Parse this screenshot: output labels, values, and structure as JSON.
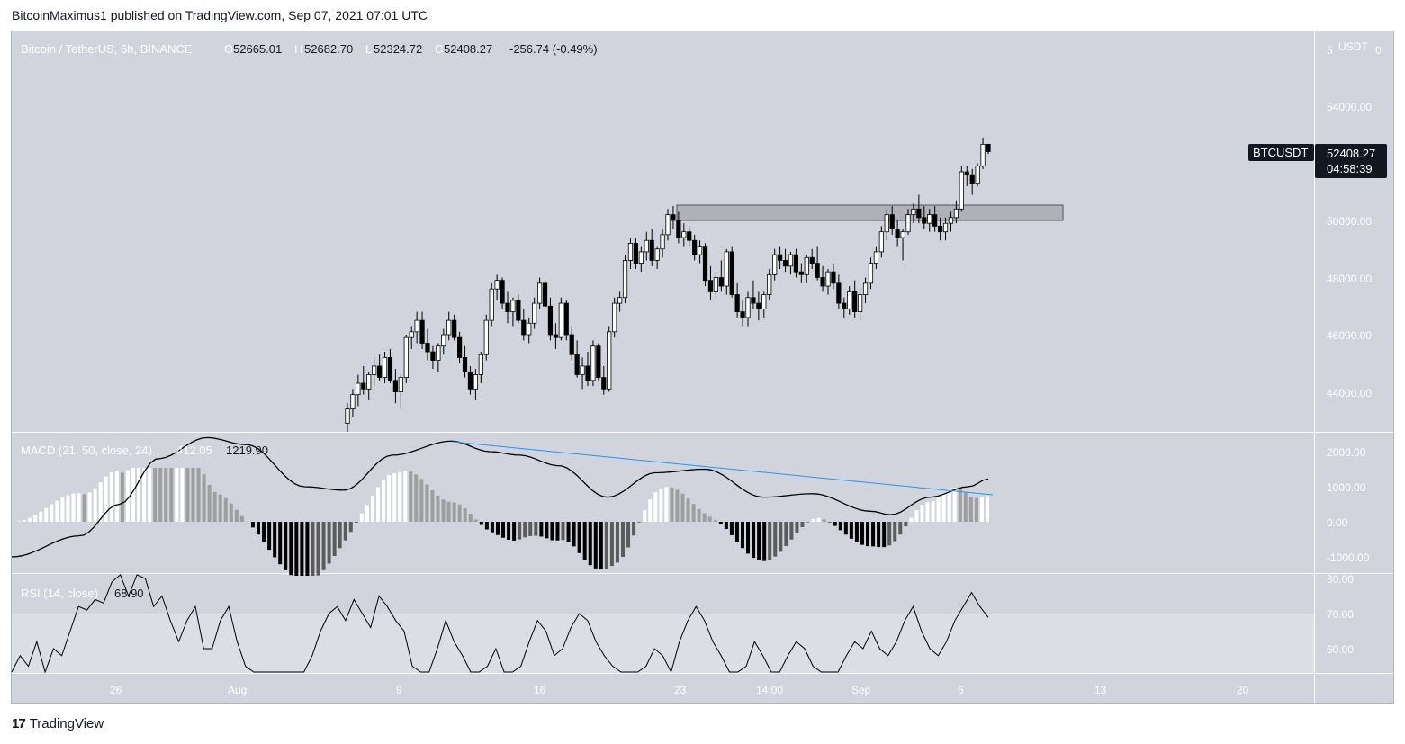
{
  "header": {
    "publisher_line": "BitcoinMaximus1 published on TradingView.com, Sep 07, 2021 07:01 UTC"
  },
  "footer": {
    "logo_mark": "17",
    "logo_text": "TradingView"
  },
  "colors": {
    "pane_bg": "#d1d4dc",
    "axis_bg": "#d1d4dc",
    "candle_up": "#ffffff",
    "candle_down": "#000000",
    "wick": "#000000",
    "trendline": "#2196f3",
    "resistance_zone": "#9c9c9c",
    "label_bg": "#131722"
  },
  "legend": {
    "symbol": "Bitcoin / TetherUS, 6h, BINANCE",
    "open_prefix": "O",
    "open": "52665.01",
    "high_prefix": "H",
    "high": "52682.70",
    "low_prefix": "L",
    "low": "52324.72",
    "close_prefix": "C",
    "close": "52408.27",
    "change": "-256.74 (-0.49%)"
  },
  "price_axis": {
    "currency": "USDT",
    "ticks": [
      "54000.00",
      "50000.00",
      "48000.00",
      "46000.00",
      "44000.00"
    ],
    "cut_top_left": "5",
    "cut_top_right": "0"
  },
  "last_price_label": {
    "symbol": "BTCUSDT",
    "price": "52408.27",
    "countdown": "04:58:39"
  },
  "macd": {
    "label": "MACD (21, 50, close, 24)",
    "value1": "412.05",
    "value2": "1219.90",
    "ticks": [
      "2000.00",
      "1000.00",
      "0.00",
      "-1000.00"
    ]
  },
  "rsi": {
    "label": "RSI (14, close)",
    "value": "68.90",
    "ticks": [
      "80.00",
      "70.00",
      "60.00"
    ]
  },
  "time_axis": {
    "labels": [
      "26",
      "Aug",
      "9",
      "16",
      "23",
      "14:00",
      "Sep",
      "6",
      "13",
      "20"
    ]
  },
  "chart_data": {
    "type": "candlestick",
    "title": "Bitcoin / TetherUS, 6h, BINANCE",
    "price_ylim": [
      43000,
      55000
    ],
    "resistance_zone": [
      50000,
      50550
    ],
    "ohlc_approx": [
      [
        42900,
        43600,
        42600,
        43400
      ],
      [
        43400,
        44100,
        43100,
        43900
      ],
      [
        43900,
        44600,
        43500,
        44300
      ],
      [
        44300,
        44900,
        43900,
        44100
      ],
      [
        44100,
        44700,
        43700,
        44600
      ],
      [
        44600,
        45200,
        44200,
        44900
      ],
      [
        44900,
        45300,
        44400,
        44500
      ],
      [
        44500,
        45400,
        44300,
        45200
      ],
      [
        45200,
        45500,
        44300,
        44400
      ],
      [
        44400,
        44800,
        43600,
        44000
      ],
      [
        44000,
        44600,
        43400,
        44500
      ],
      [
        44500,
        46000,
        44300,
        45900
      ],
      [
        45900,
        46300,
        45500,
        46100
      ],
      [
        46100,
        46800,
        45700,
        46500
      ],
      [
        46500,
        46800,
        45500,
        45700
      ],
      [
        45700,
        46200,
        45100,
        45400
      ],
      [
        45400,
        45600,
        44800,
        45100
      ],
      [
        45100,
        45700,
        44700,
        45600
      ],
      [
        45600,
        46200,
        45300,
        46000
      ],
      [
        46000,
        46800,
        45800,
        46500
      ],
      [
        46500,
        46700,
        45800,
        45900
      ],
      [
        45900,
        46100,
        45000,
        45200
      ],
      [
        45200,
        45600,
        44500,
        44700
      ],
      [
        44700,
        44900,
        43900,
        44100
      ],
      [
        44100,
        44800,
        43700,
        44600
      ],
      [
        44600,
        45400,
        44300,
        45300
      ],
      [
        45300,
        46700,
        45100,
        46500
      ],
      [
        46500,
        47800,
        46300,
        47600
      ],
      [
        47600,
        48100,
        47200,
        47900
      ],
      [
        47900,
        48000,
        46900,
        47100
      ],
      [
        47100,
        47500,
        46400,
        46800
      ],
      [
        46800,
        47300,
        46300,
        47200
      ],
      [
        47200,
        47400,
        46400,
        46500
      ],
      [
        46500,
        46900,
        45800,
        46000
      ],
      [
        46000,
        46600,
        45700,
        46400
      ],
      [
        46400,
        47300,
        46200,
        47100
      ],
      [
        47100,
        48000,
        46900,
        47800
      ],
      [
        47800,
        47900,
        46900,
        47000
      ],
      [
        47000,
        47300,
        45800,
        46000
      ],
      [
        46000,
        46400,
        45500,
        45900
      ],
      [
        45900,
        47300,
        45800,
        47100
      ],
      [
        47100,
        47200,
        45800,
        46000
      ],
      [
        46000,
        46300,
        45100,
        45300
      ],
      [
        45300,
        45800,
        44500,
        44600
      ],
      [
        44600,
        45200,
        44100,
        44900
      ],
      [
        44900,
        45400,
        44200,
        44400
      ],
      [
        44400,
        45800,
        44200,
        45600
      ],
      [
        45600,
        45700,
        44400,
        44500
      ],
      [
        44500,
        44900,
        43900,
        44100
      ],
      [
        44100,
        46300,
        44000,
        46100
      ],
      [
        46100,
        47300,
        45900,
        47100
      ],
      [
        47100,
        47500,
        46800,
        47300
      ],
      [
        47300,
        48800,
        47100,
        48600
      ],
      [
        48600,
        49400,
        48300,
        49200
      ],
      [
        49200,
        49400,
        48300,
        48500
      ],
      [
        48500,
        49100,
        48200,
        48900
      ],
      [
        48900,
        49600,
        48600,
        49300
      ],
      [
        49300,
        49700,
        48400,
        48600
      ],
      [
        48600,
        49100,
        48300,
        49000
      ],
      [
        49000,
        49700,
        48700,
        49500
      ],
      [
        49500,
        50400,
        49300,
        50200
      ],
      [
        50200,
        50500,
        49700,
        50000
      ],
      [
        50000,
        50300,
        49200,
        49400
      ],
      [
        49400,
        49900,
        49100,
        49600
      ],
      [
        49600,
        49800,
        49100,
        49300
      ],
      [
        49300,
        49500,
        48600,
        48800
      ],
      [
        48800,
        49300,
        48500,
        49100
      ],
      [
        49100,
        49200,
        47700,
        47900
      ],
      [
        47900,
        48400,
        47200,
        47500
      ],
      [
        47500,
        48200,
        47300,
        48000
      ],
      [
        48000,
        48600,
        47500,
        47700
      ],
      [
        47700,
        49000,
        47400,
        48900
      ],
      [
        48900,
        49100,
        47300,
        47400
      ],
      [
        47400,
        47800,
        46600,
        46800
      ],
      [
        46800,
        47200,
        46300,
        46600
      ],
      [
        46600,
        47500,
        46300,
        47300
      ],
      [
        47300,
        47900,
        46900,
        47100
      ],
      [
        47100,
        47500,
        46500,
        46900
      ],
      [
        46900,
        47500,
        46600,
        47400
      ],
      [
        47400,
        48300,
        47200,
        48100
      ],
      [
        48100,
        49000,
        47900,
        48800
      ],
      [
        48800,
        49100,
        48300,
        48600
      ],
      [
        48600,
        49000,
        48200,
        48400
      ],
      [
        48400,
        48900,
        48100,
        48800
      ],
      [
        48800,
        49000,
        48000,
        48200
      ],
      [
        48200,
        48500,
        47800,
        48100
      ],
      [
        48100,
        48800,
        47800,
        48700
      ],
      [
        48700,
        49000,
        48300,
        48500
      ],
      [
        48500,
        49100,
        47900,
        48000
      ],
      [
        48000,
        48400,
        47500,
        47700
      ],
      [
        47700,
        48300,
        47400,
        48200
      ],
      [
        48200,
        48500,
        47600,
        47800
      ],
      [
        47800,
        48100,
        46900,
        47100
      ],
      [
        47100,
        47300,
        46600,
        46900
      ],
      [
        46900,
        47700,
        46700,
        47500
      ],
      [
        47500,
        47900,
        46600,
        46800
      ],
      [
        46800,
        47600,
        46500,
        47400
      ],
      [
        47400,
        48000,
        47100,
        47800
      ],
      [
        47800,
        48700,
        47600,
        48500
      ],
      [
        48500,
        49100,
        48300,
        48900
      ],
      [
        48900,
        49800,
        48700,
        49600
      ],
      [
        49600,
        50400,
        49300,
        50200
      ],
      [
        50200,
        50500,
        49500,
        49700
      ],
      [
        49700,
        50000,
        49100,
        49400
      ],
      [
        49400,
        49700,
        48600,
        49600
      ],
      [
        49600,
        50400,
        49500,
        50200
      ],
      [
        50200,
        50600,
        49900,
        50400
      ],
      [
        50400,
        50900,
        49900,
        50100
      ],
      [
        50100,
        50500,
        49700,
        49900
      ],
      [
        49900,
        50400,
        49600,
        50200
      ],
      [
        50200,
        50500,
        49600,
        49800
      ],
      [
        49800,
        50100,
        49300,
        49600
      ],
      [
        49600,
        50100,
        49300,
        49900
      ],
      [
        49900,
        50300,
        49600,
        50100
      ],
      [
        50100,
        50700,
        49900,
        50400
      ],
      [
        50400,
        51900,
        50300,
        51700
      ],
      [
        51700,
        51900,
        51200,
        51600
      ],
      [
        51600,
        51800,
        50900,
        51300
      ],
      [
        51300,
        52000,
        51200,
        51900
      ],
      [
        51900,
        52900,
        51800,
        52665
      ],
      [
        52665,
        52683,
        52325,
        52408
      ]
    ],
    "macd_series_note": "histogram and signal lines drawn from derived values",
    "rsi_last": 68.9,
    "macd_last": [
      412.05,
      1219.9
    ]
  }
}
